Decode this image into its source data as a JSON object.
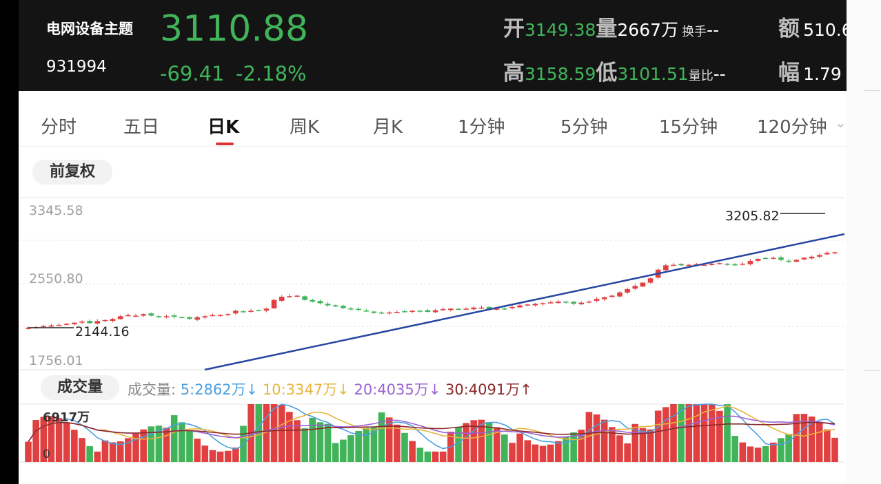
{
  "header": {
    "name": "电网设备主题",
    "code": "931994",
    "price": "3110.88",
    "change": "-69.41",
    "change_pct": "-2.18%",
    "open_label": "开",
    "open": "3149.38",
    "volume_label": "量",
    "volume": "2667万",
    "turnover_label": "换手",
    "turnover": "--",
    "amount_label": "额",
    "amount": "510.6",
    "high_label": "高",
    "high": "3158.59",
    "low_label": "低",
    "low": "3101.51",
    "ratio_label": "量比",
    "ratio": "--",
    "amp_label": "幅",
    "amp": "1.79",
    "colors": {
      "down": "#41b45a",
      "up": "#e04040",
      "bg": "#141414"
    }
  },
  "tabs": [
    "分时",
    "五日",
    "日K",
    "周K",
    "月K",
    "1分钟",
    "5分钟",
    "15分钟",
    "120分钟"
  ],
  "active_tab": "日K",
  "adjust_button": "前复权",
  "price_axis": {
    "top": "3345.58",
    "mid": "2550.80",
    "bottom": "1756.01"
  },
  "annotations": {
    "high_mark": "3205.82",
    "low_mark": "2144.16"
  },
  "volume_panel": {
    "button": "成交量",
    "legend_title": "成交量:",
    "ma5": "5:2862万↓",
    "ma10": "10:3347万↓",
    "ma20": "20:4035万↓",
    "ma30": "30:4091万↑",
    "max_label": "6917万",
    "zero_label": "0",
    "colors": {
      "ma5": "#4a9fe0",
      "ma10": "#e8b43c",
      "ma20": "#9b63d4",
      "ma30": "#8b2a2a"
    }
  },
  "chart_data": {
    "type": "candlestick",
    "closes": [
      2145,
      2150,
      2160,
      2165,
      2170,
      2180,
      2190,
      2200,
      2185,
      2205,
      2215,
      2225,
      2250,
      2260,
      2255,
      2270,
      2255,
      2240,
      2250,
      2245,
      2238,
      2225,
      2240,
      2250,
      2260,
      2262,
      2270,
      2300,
      2290,
      2300,
      2305,
      2320,
      2400,
      2430,
      2435,
      2440,
      2400,
      2385,
      2370,
      2350,
      2340,
      2325,
      2315,
      2310,
      2295,
      2280,
      2282,
      2285,
      2290,
      2295,
      2300,
      2298,
      2290,
      2305,
      2315,
      2320,
      2315,
      2320,
      2330,
      2330,
      2318,
      2320,
      2320,
      2335,
      2350,
      2358,
      2365,
      2370,
      2378,
      2385,
      2378,
      2365,
      2375,
      2385,
      2410,
      2425,
      2440,
      2470,
      2500,
      2530,
      2560,
      2600,
      2680,
      2720,
      2725,
      2720,
      2725,
      2730,
      2725,
      2735,
      2740,
      2730,
      2720,
      2735,
      2760,
      2780,
      2785,
      2790,
      2770,
      2755,
      2770,
      2790,
      2800,
      2815,
      2835,
      2840
    ],
    "volume_max": "6917万",
    "volume_ma": {
      "ma5": "2862万",
      "ma10": "3347万",
      "ma20": "4035万",
      "ma30": "4091万"
    }
  }
}
